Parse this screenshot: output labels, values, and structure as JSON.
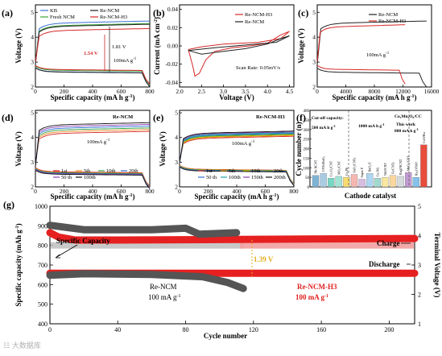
{
  "panels": {
    "a": {
      "label": "(a)",
      "xlabel": "Specific capacity (mA h g",
      "xsup": "-1",
      "ylabel": "Voltage (V)",
      "xticks": [
        "0",
        "200",
        "400",
        "600",
        "800"
      ],
      "yticks": [
        "2",
        "3",
        "4",
        "5"
      ],
      "legend": [
        "KB",
        "Fresh NCM",
        "Re-NCM",
        "Re-NCM-H3"
      ],
      "ann1": "1.54 V",
      "ann2": "1.81 V",
      "rate": "100mA g",
      "ratesup": "-1",
      "colors": [
        "#3b6fd6",
        "#3aa63a",
        "#222222",
        "#d62828"
      ]
    },
    "b": {
      "label": "(b)",
      "xlabel": "Voltage (V)",
      "ylabel": "Current (mA cm",
      "ylabelsup": "-2",
      "xticks": [
        "2.0",
        "2.5",
        "3.0",
        "3.5",
        "4.0",
        "4.5"
      ],
      "yticks": [
        "0.04",
        "0.02",
        "0.00",
        "-0.02",
        "-0.04"
      ],
      "legend": [
        "Re-NCM-H3",
        "Re-NCM"
      ],
      "scan": "Scan Rate:  0.05mV/s"
    },
    "c": {
      "label": "(c)",
      "xlabel": "Specific capacity (mA h g",
      "xsup": "-1",
      "ylabel": "Voltage (V)",
      "xticks": [
        "0",
        "4000",
        "8000",
        "12000",
        "16000"
      ],
      "yticks": [
        "2",
        "3",
        "4",
        "5"
      ],
      "legend": [
        "Re-NCM",
        "Re-NCM-H3"
      ],
      "rate": "100mA g",
      "ratesup": "-1"
    },
    "d": {
      "label": "(d)",
      "xlabel": "Specific capacity (mA h g",
      "xsup": "-1",
      "ylabel": "Voltage (V)",
      "xticks": [
        "0",
        "200",
        "400",
        "600",
        "800"
      ],
      "yticks": [
        "2",
        "3",
        "4",
        "5"
      ],
      "title": "Re-NCM",
      "rate": "100mA g",
      "ratesup": "-1",
      "legend": [
        "1st",
        "5th",
        "10th",
        "20th",
        "50 th",
        "100th"
      ],
      "colors": [
        "#d62828",
        "#f08a24",
        "#2e9e3f",
        "#2f6fd6",
        "#8a3fb0",
        "#111111"
      ]
    },
    "e": {
      "label": "(e)",
      "xlabel": "Specific capacity (mA h g",
      "xsup": "-1",
      "ylabel": "Voltage (V)",
      "xticks": [
        "0",
        "200",
        "400",
        "600",
        "800"
      ],
      "yticks": [
        "2",
        "3",
        "4",
        "5"
      ],
      "title": "Re-NCM-H3",
      "rate": "100mA g",
      "ratesup": "-1",
      "legend": [
        "1st",
        "5th",
        "10th",
        "20th",
        "50 th",
        "100th",
        "150th",
        "200th"
      ],
      "colors": [
        "#d62828",
        "#f08a24",
        "#b8b400",
        "#2e9e3f",
        "#2f6fd6",
        "#1aa6a6",
        "#8a3fb0",
        "#111111"
      ]
    },
    "f": {
      "label": "(f)",
      "xlabel": "Cathode catalyst",
      "ylabel": "Cycle number (n)",
      "yticks": [
        "0",
        "50",
        "100",
        "150",
        "200",
        "250",
        "300",
        "350",
        "400"
      ],
      "cut1": "Cut-off capacity:",
      "cut1b": "500 mA h g",
      "cut1sup": "-1",
      "cut2": "1000 mA h g",
      "cut2sup": "-1",
      "formula": "Co₂Mn₃O₈/CC",
      "thiswork": "This work",
      "thisrate": "800 mA h g",
      "thisratesup": "-1",
      "cat_labels": [
        "Nb-NCNT",
        "CNTs/RuO₂",
        "Co₃O₄/CNT",
        "MO₂/CNT",
        "Co₃Pb",
        "SnO₂/CNTs",
        "Super P",
        "RuO₂/C",
        "Cu-NG",
        "NiO/CNT",
        "Fe/CNTs",
        "Ru@NCNT",
        "MnO₂/CNT",
        "Ru₂O/NiO",
        "CoO/Ru"
      ]
    },
    "g": {
      "label": "(g)",
      "xlabel": "Cycle number",
      "ylabel": "Specific capacity (mAh g",
      "ylabelsup": "-1",
      "y2label": "Terminal Voltage (V)",
      "xticks": [
        "0",
        "40",
        "80",
        "120",
        "160",
        "200"
      ],
      "yticks": [
        "400",
        "500",
        "600",
        "700",
        "800",
        "900",
        "1000"
      ],
      "y2ticks": [
        "1",
        "2",
        "3",
        "4",
        "5"
      ],
      "charge": "Charge",
      "discharge": "Discharge",
      "spec": "Specific Capacity",
      "delta": "1.39 V",
      "renCM": "Re-NCM",
      "renCMrate": "100 mA g",
      "renCMratesup": "-1",
      "reH3": "Re-NCM-H3",
      "reH3rate": "100 mA g",
      "reH3ratesup": "-1"
    }
  },
  "chart_data": [
    {
      "type": "line",
      "panel": "a",
      "xlabel": "Specific capacity (mA h g-1)",
      "ylabel": "Voltage (V)",
      "xlim": [
        0,
        800
      ],
      "ylim": [
        2,
        5.3
      ],
      "series": [
        {
          "name": "KB",
          "charge_v": 4.55,
          "discharge_v": 2.62
        },
        {
          "name": "Fresh NCM",
          "charge_v": 4.45,
          "discharge_v": 2.68
        },
        {
          "name": "Re-NCM",
          "charge_v": 4.42,
          "discharge_v": 2.61
        },
        {
          "name": "Re-NCM-H3",
          "charge_v": 4.25,
          "discharge_v": 2.71
        }
      ]
    },
    {
      "type": "line",
      "panel": "b",
      "xlabel": "Voltage (V)",
      "ylabel": "Current (mA cm-2)",
      "xlim": [
        2.0,
        4.5
      ],
      "ylim": [
        -0.045,
        0.045
      ],
      "series": [
        {
          "name": "Re-NCM-H3",
          "x": [
            2.2,
            2.3,
            2.35,
            2.45,
            2.6,
            2.8,
            3.2,
            3.6,
            4.0,
            4.3,
            4.5,
            4.3,
            3.8,
            3.0,
            2.5,
            2.2
          ],
          "y": [
            -0.004,
            -0.022,
            -0.033,
            -0.03,
            -0.015,
            -0.006,
            -0.002,
            0.0,
            0.003,
            0.012,
            0.016,
            0.008,
            0.004,
            0.002,
            -0.001,
            -0.004
          ]
        },
        {
          "name": "Re-NCM",
          "x": [
            2.2,
            2.5,
            3.0,
            3.5,
            4.0,
            4.3,
            4.5,
            4.2,
            3.5,
            2.8,
            2.2
          ],
          "y": [
            -0.005,
            -0.009,
            -0.006,
            -0.003,
            0.002,
            0.008,
            0.011,
            0.004,
            0.001,
            -0.002,
            -0.005
          ]
        }
      ]
    },
    {
      "type": "line",
      "panel": "c",
      "xlabel": "Specific capacity (mA h g-1)",
      "ylabel": "Voltage (V)",
      "xlim": [
        0,
        16000
      ],
      "ylim": [
        2,
        5.3
      ],
      "series": [
        {
          "name": "Re-NCM",
          "capacity": 15300
        },
        {
          "name": "Re-NCM-H3",
          "capacity": 12300
        }
      ]
    },
    {
      "type": "bar",
      "panel": "f",
      "xlabel": "Cathode catalyst",
      "ylabel": "Cycle number (n)",
      "ylim": [
        0,
        400
      ],
      "values": [
        60,
        70,
        45,
        55,
        50,
        65,
        40,
        70,
        45,
        50,
        60,
        55,
        75,
        50,
        220
      ]
    },
    {
      "type": "line",
      "panel": "g",
      "xlabel": "Cycle number",
      "ylabel": "Specific capacity (mAh g-1)",
      "y2label": "Terminal Voltage (V)",
      "xlim": [
        0,
        215
      ],
      "ylim": [
        400,
        1000
      ],
      "y2lim": [
        1,
        5
      ],
      "series": [
        {
          "name": "Re-NCM capacity",
          "cycles": [
            1,
            114
          ],
          "value": 800
        },
        {
          "name": "Re-NCM-H3 capacity",
          "cycles": [
            1,
            215
          ],
          "value": 800
        },
        {
          "name": "Re-NCM charge",
          "x": [
            0,
            20,
            60,
            80,
            88,
            110
          ],
          "y": [
            4.35,
            4.2,
            4.2,
            4.25,
            4.05,
            4.1
          ]
        },
        {
          "name": "Re-NCM discharge",
          "x": [
            0,
            20,
            60,
            90,
            105,
            114
          ],
          "y": [
            2.65,
            2.7,
            2.68,
            2.6,
            2.4,
            2.2
          ]
        },
        {
          "name": "Re-NCM-H3 charge",
          "x": [
            0,
            5,
            15,
            40,
            215
          ],
          "y": [
            4.1,
            3.95,
            3.85,
            3.85,
            3.9
          ]
        },
        {
          "name": "Re-NCM-H3 discharge",
          "x": [
            0,
            215
          ],
          "y": [
            2.72,
            2.72
          ]
        }
      ]
    }
  ],
  "watermark": "☷ 大数据库"
}
